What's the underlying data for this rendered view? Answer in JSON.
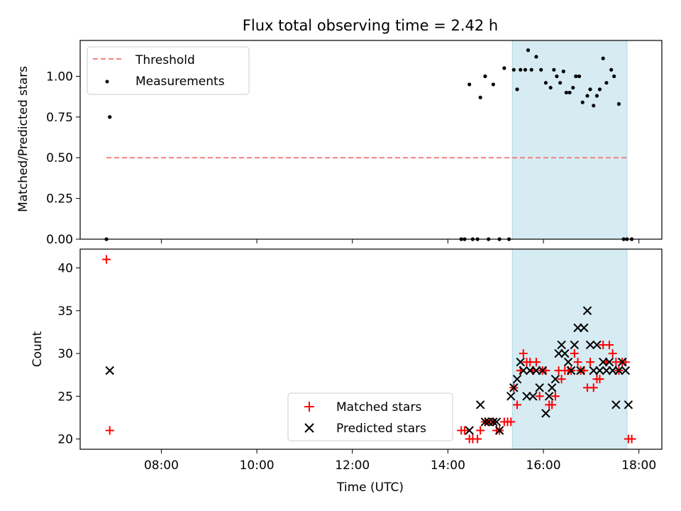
{
  "title": "Flux total observing time = 2.42 h",
  "colors": {
    "threshold": "#f08080",
    "measure": "#000000",
    "matched": "#ff0000",
    "predicted": "#000000",
    "span": "#add8e6"
  },
  "chart_data": [
    {
      "type": "scatter",
      "ylabel": "Matched/Predicted stars",
      "ylim": [
        0,
        1.22
      ],
      "xlim_hours": [
        6.3,
        18.48
      ],
      "yticks": [
        "0.00",
        "0.25",
        "0.50",
        "0.75",
        "1.00"
      ],
      "ytick_values": [
        0,
        0.25,
        0.5,
        0.75,
        1.0
      ],
      "xtick_hours": [
        8,
        10,
        12,
        14,
        16,
        18
      ],
      "shaded_span_hours": [
        15.35,
        17.75
      ],
      "legend": {
        "placement": "upper-left",
        "threshold_label": "Threshold",
        "measurements_label": "Measurements"
      },
      "threshold": {
        "value": 0.5,
        "x_hours": [
          6.85,
          17.75
        ]
      },
      "measurements": {
        "x_hours": [
          6.85,
          6.92,
          14.28,
          14.35,
          14.45,
          14.52,
          14.62,
          14.68,
          14.78,
          14.85,
          14.95,
          15.08,
          15.18,
          15.28,
          15.38,
          15.45,
          15.52,
          15.62,
          15.68,
          15.75,
          15.85,
          15.95,
          16.05,
          16.15,
          16.22,
          16.28,
          16.35,
          16.42,
          16.48,
          16.55,
          16.62,
          16.68,
          16.75,
          16.82,
          16.92,
          16.98,
          17.05,
          17.12,
          17.18,
          17.25,
          17.32,
          17.42,
          17.48,
          17.58,
          17.68,
          17.75,
          17.85
        ],
        "values": [
          0.0,
          0.75,
          0.0,
          0.0,
          0.95,
          0.0,
          0.0,
          0.87,
          1.0,
          0.0,
          0.95,
          0.0,
          1.05,
          0.0,
          1.04,
          0.92,
          1.04,
          1.04,
          1.16,
          1.04,
          1.12,
          1.04,
          0.96,
          0.93,
          1.04,
          1.0,
          0.96,
          1.03,
          0.9,
          0.9,
          0.93,
          1.0,
          1.0,
          0.84,
          0.88,
          0.92,
          0.82,
          0.88,
          0.92,
          1.11,
          0.96,
          1.04,
          1.0,
          0.83,
          0.0,
          0.0,
          0.0
        ]
      }
    },
    {
      "type": "scatter",
      "ylabel": "Count",
      "xlabel": "Time (UTC)",
      "ylim": [
        18.8,
        42.2
      ],
      "xlim_hours": [
        6.3,
        18.48
      ],
      "yticks": [
        "20",
        "25",
        "30",
        "35",
        "40"
      ],
      "ytick_values": [
        20,
        25,
        30,
        35,
        40
      ],
      "xtick_hours": [
        8,
        10,
        12,
        14,
        16,
        18
      ],
      "xtick_labels": [
        "08:00",
        "10:00",
        "12:00",
        "14:00",
        "16:00",
        "18:00"
      ],
      "shaded_span_hours": [
        15.35,
        17.75
      ],
      "legend": {
        "placement": "lower-center",
        "matched_label": "Matched stars",
        "predicted_label": "Predicted stars"
      },
      "series": [
        {
          "name": "Matched stars",
          "marker": "plus",
          "x_hours": [
            6.85,
            6.92,
            14.28,
            14.35,
            14.45,
            14.52,
            14.62,
            14.68,
            14.78,
            14.85,
            14.95,
            15.02,
            15.08,
            15.18,
            15.25,
            15.32,
            15.38,
            15.45,
            15.52,
            15.58,
            15.65,
            15.72,
            15.78,
            15.85,
            15.92,
            15.98,
            16.05,
            16.12,
            16.18,
            16.25,
            16.32,
            16.38,
            16.45,
            16.52,
            16.58,
            16.65,
            16.72,
            16.78,
            16.85,
            16.92,
            16.98,
            17.05,
            17.12,
            17.18,
            17.25,
            17.32,
            17.38,
            17.45,
            17.52,
            17.58,
            17.65,
            17.72,
            17.78,
            17.85
          ],
          "values": [
            41,
            21,
            21,
            21,
            20,
            20,
            20,
            21,
            22,
            22,
            22,
            21,
            21,
            22,
            22,
            22,
            26,
            24,
            28,
            30,
            29,
            29,
            28,
            29,
            25,
            28,
            28,
            24,
            24,
            25,
            28,
            27,
            28,
            28,
            28,
            30,
            29,
            28,
            28,
            26,
            29,
            26,
            27,
            27,
            31,
            29,
            31,
            30,
            29,
            28,
            29,
            29,
            20,
            20
          ]
        },
        {
          "name": "Predicted stars",
          "marker": "x",
          "x_hours": [
            6.92,
            14.45,
            14.68,
            14.78,
            14.85,
            14.95,
            15.02,
            15.08,
            15.32,
            15.38,
            15.45,
            15.52,
            15.58,
            15.65,
            15.72,
            15.78,
            15.85,
            15.92,
            15.98,
            16.05,
            16.12,
            16.18,
            16.25,
            16.32,
            16.38,
            16.45,
            16.52,
            16.58,
            16.65,
            16.72,
            16.78,
            16.85,
            16.92,
            16.98,
            17.05,
            17.12,
            17.18,
            17.25,
            17.32,
            17.38,
            17.45,
            17.52,
            17.58,
            17.65,
            17.72,
            17.78
          ],
          "values": [
            28,
            21,
            24,
            22,
            22,
            22,
            22,
            21,
            25,
            26,
            27,
            29,
            28,
            25,
            28,
            25,
            28,
            26,
            28,
            23,
            25,
            26,
            27,
            30,
            31,
            30,
            29,
            28,
            31,
            33,
            28,
            33,
            35,
            31,
            28,
            31,
            28,
            29,
            28,
            29,
            28,
            24,
            28,
            29,
            28,
            24
          ]
        }
      ]
    }
  ]
}
